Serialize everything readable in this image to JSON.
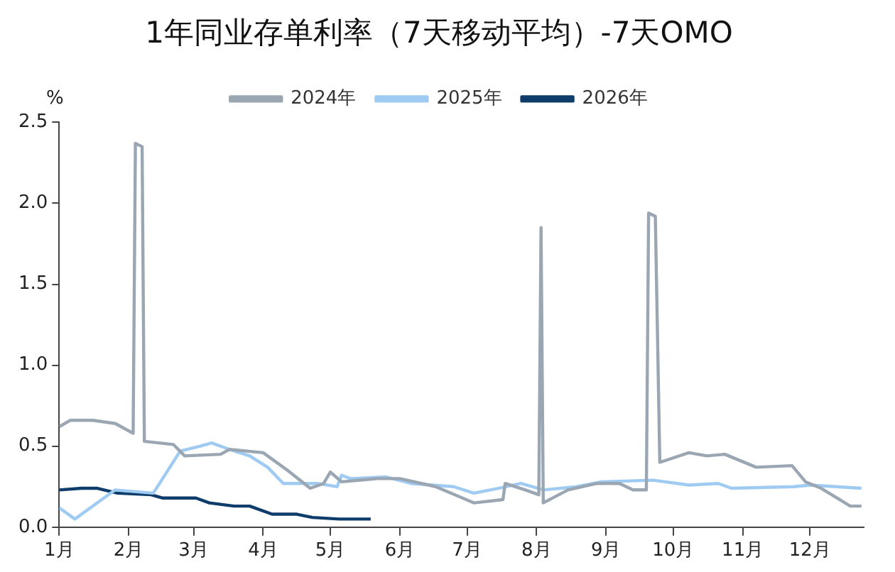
{
  "chart_data": {
    "type": "line",
    "title": "1年同业存单利率（7天移动平均）-7天OMO",
    "ylabel": "%",
    "xlim": [
      "--01-01",
      "--12-25"
    ],
    "xticks": [
      {
        "value": "--01-01",
        "label": "1月"
      },
      {
        "value": "--02-01",
        "label": "2月"
      },
      {
        "value": "--03-01",
        "label": "3月"
      },
      {
        "value": "--04-01",
        "label": "4月"
      },
      {
        "value": "--05-01",
        "label": "5月"
      },
      {
        "value": "--06-01",
        "label": "6月"
      },
      {
        "value": "--07-01",
        "label": "7月"
      },
      {
        "value": "--08-01",
        "label": "8月"
      },
      {
        "value": "--09-01",
        "label": "9月"
      },
      {
        "value": "--10-01",
        "label": "10月"
      },
      {
        "value": "--11-01",
        "label": "11月"
      },
      {
        "value": "--12-01",
        "label": "12月"
      }
    ],
    "ylim": [
      0,
      2.5
    ],
    "yticks": [
      {
        "value": 0,
        "label": "0.0"
      },
      {
        "value": 0.5,
        "label": "0.5"
      },
      {
        "value": 1,
        "label": "1.0"
      },
      {
        "value": 1.5,
        "label": "1.5"
      },
      {
        "value": 2,
        "label": "2.0"
      },
      {
        "value": 2.5,
        "label": "2.5"
      }
    ],
    "grid": false,
    "legend": "top",
    "marker": "none",
    "line_style": "solid",
    "series": [
      {
        "name": "2024年",
        "color": "#9aa6b2",
        "x": [
          "--01-01",
          "--01-06",
          "--01-16",
          "--01-26",
          "--02-03",
          "--02-04",
          "--02-07",
          "--02-08",
          "--02-21",
          "--02-26",
          "--03-13",
          "--03-17",
          "--04-01",
          "--04-12",
          "--04-22",
          "--04-28",
          "--05-01",
          "--05-06",
          "--05-22",
          "--06-01",
          "--06-17",
          "--07-04",
          "--07-17",
          "--07-18",
          "--07-27",
          "--08-02",
          "--08-03",
          "--08-04",
          "--08-15",
          "--08-28",
          "--09-07",
          "--09-13",
          "--09-19",
          "--09-20",
          "--09-23",
          "--09-25",
          "--10-08",
          "--10-16",
          "--10-24",
          "--11-07",
          "--11-23",
          "--11-29",
          "--12-06",
          "--12-19",
          "--12-24"
        ],
        "values": [
          0.62,
          0.66,
          0.66,
          0.64,
          0.58,
          2.37,
          2.35,
          0.53,
          0.51,
          0.44,
          0.45,
          0.48,
          0.46,
          0.35,
          0.24,
          0.27,
          0.34,
          0.28,
          0.3,
          0.3,
          0.25,
          0.15,
          0.17,
          0.27,
          0.23,
          0.2,
          1.85,
          0.15,
          0.23,
          0.27,
          0.27,
          0.23,
          0.23,
          1.94,
          1.92,
          0.4,
          0.46,
          0.44,
          0.45,
          0.37,
          0.38,
          0.28,
          0.24,
          0.13,
          0.13
        ]
      },
      {
        "name": "2025年",
        "color": "#9fcbf2",
        "x": [
          "--01-01",
          "--01-08",
          "--01-18",
          "--01-26",
          "--02-12",
          "--02-24",
          "--03-04",
          "--03-09",
          "--03-17",
          "--03-26",
          "--04-03",
          "--04-10",
          "--04-25",
          "--05-04",
          "--05-06",
          "--05-10",
          "--05-26",
          "--06-06",
          "--06-25",
          "--07-04",
          "--07-15",
          "--07-25",
          "--08-04",
          "--08-19",
          "--08-30",
          "--09-22",
          "--10-08",
          "--10-21",
          "--10-27",
          "--11-24",
          "--12-01",
          "--12-24"
        ],
        "values": [
          0.12,
          0.05,
          0.15,
          0.23,
          0.21,
          0.47,
          0.5,
          0.52,
          0.48,
          0.44,
          0.37,
          0.27,
          0.27,
          0.25,
          0.32,
          0.3,
          0.31,
          0.27,
          0.25,
          0.21,
          0.24,
          0.27,
          0.23,
          0.25,
          0.28,
          0.29,
          0.26,
          0.27,
          0.24,
          0.25,
          0.26,
          0.24
        ]
      },
      {
        "name": "2026年",
        "color": "#0f3d6b",
        "x": [
          "--01-01",
          "--01-11",
          "--01-18",
          "--01-27",
          "--02-11",
          "--02-16",
          "--03-02",
          "--03-08",
          "--03-19",
          "--03-26",
          "--04-05",
          "--04-16",
          "--04-23",
          "--05-05",
          "--05-19"
        ],
        "values": [
          0.23,
          0.24,
          0.24,
          0.21,
          0.2,
          0.18,
          0.18,
          0.15,
          0.13,
          0.13,
          0.08,
          0.08,
          0.06,
          0.05,
          0.05
        ]
      }
    ]
  }
}
